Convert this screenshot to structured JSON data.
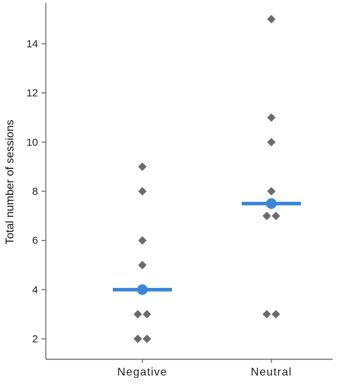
{
  "chart_data": {
    "type": "scatter",
    "subtype": "dot-plot-with-mean",
    "title": "",
    "xlabel": "",
    "ylabel": "Total number of sessions",
    "categories": [
      "Negative",
      "Neutral"
    ],
    "ylim": [
      1.3,
      15.8
    ],
    "yticks": [
      2,
      4,
      6,
      8,
      10,
      12,
      14
    ],
    "grid": false,
    "points": [
      {
        "category": "Negative",
        "values": [
          9,
          8,
          6,
          5,
          3,
          3,
          2,
          2
        ],
        "jitter": [
          0,
          0,
          0,
          0,
          -0.15,
          0.15,
          -0.15,
          0.15
        ]
      },
      {
        "category": "Neutral",
        "values": [
          15,
          11,
          10,
          8,
          7,
          7,
          3,
          3
        ],
        "jitter": [
          0,
          0,
          0,
          0,
          -0.15,
          0.15,
          -0.15,
          0.15
        ]
      }
    ],
    "means": [
      {
        "category": "Negative",
        "value": 4.0
      },
      {
        "category": "Neutral",
        "value": 7.5
      }
    ],
    "colors": {
      "points": "#6b6b6b",
      "mean": "#3a86d8",
      "axis": "#555555"
    }
  }
}
